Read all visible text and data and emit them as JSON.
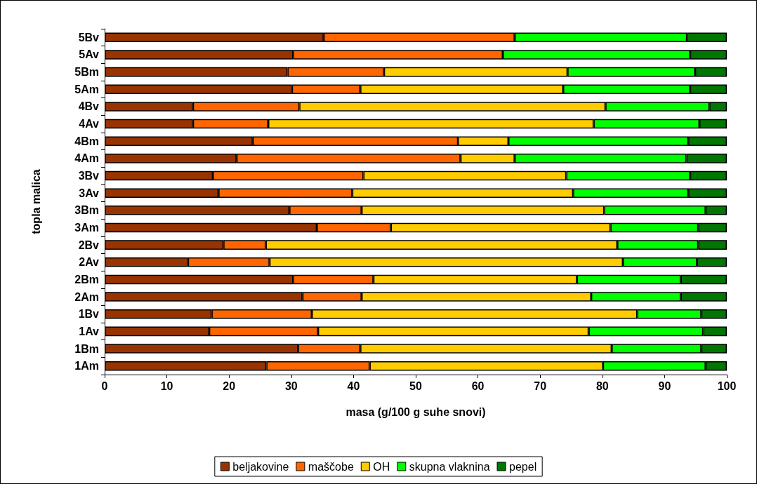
{
  "chart_data": {
    "type": "bar",
    "orientation": "horizontal",
    "stacked": true,
    "xlabel": "masa (g/100 g suhe snovi)",
    "ylabel": "topla malica",
    "categories": [
      "5Bv",
      "5Av",
      "5Bm",
      "5Am",
      "4Bv",
      "4Av",
      "4Bm",
      "4Am",
      "3Bv",
      "3Av",
      "3Bm",
      "3Am",
      "2Bv",
      "2Av",
      "2Bm",
      "2Am",
      "1Bv",
      "1Av",
      "1Bm",
      "1Am"
    ],
    "xlim": [
      0,
      100
    ],
    "xticks": [
      0,
      10,
      20,
      30,
      40,
      50,
      60,
      70,
      80,
      90,
      100
    ],
    "grid": false,
    "legend": "bottom",
    "series": [
      {
        "name": "beljakovine",
        "color": "#993300",
        "values": [
          35.2,
          30.3,
          29.4,
          30.1,
          14.2,
          14.2,
          23.8,
          21.2,
          17.4,
          18.3,
          29.7,
          34.1,
          19.1,
          13.4,
          30.3,
          31.8,
          17.2,
          16.8,
          31.1,
          26.0
        ]
      },
      {
        "name": "maščobe",
        "color": "#ff6600",
        "values": [
          30.7,
          33.7,
          15.5,
          11.0,
          17.1,
          12.1,
          33.0,
          36.0,
          24.2,
          21.5,
          11.6,
          11.9,
          6.8,
          13.1,
          12.9,
          9.5,
          16.1,
          17.5,
          10.0,
          16.6
        ]
      },
      {
        "name": "OH",
        "color": "#ffcc00",
        "values": [
          null,
          null,
          29.5,
          32.6,
          49.2,
          52.3,
          8.1,
          8.7,
          32.6,
          35.5,
          39.0,
          35.3,
          56.5,
          56.8,
          32.7,
          36.9,
          52.3,
          43.5,
          40.4,
          37.5
        ]
      },
      {
        "name": "skupna vlaknina",
        "color": "#00ff00",
        "values": [
          27.7,
          30.1,
          20.5,
          20.4,
          16.7,
          17.0,
          28.9,
          27.6,
          19.9,
          18.5,
          16.3,
          14.1,
          13.0,
          11.9,
          16.7,
          14.4,
          10.3,
          18.4,
          14.4,
          16.5
        ]
      },
      {
        "name": "pepel",
        "color": "#007700",
        "values": [
          6.4,
          5.9,
          5.1,
          5.9,
          2.8,
          4.4,
          6.2,
          6.5,
          5.9,
          6.2,
          3.4,
          4.6,
          4.6,
          4.8,
          7.4,
          7.4,
          4.1,
          3.8,
          4.1,
          3.4
        ]
      }
    ]
  }
}
